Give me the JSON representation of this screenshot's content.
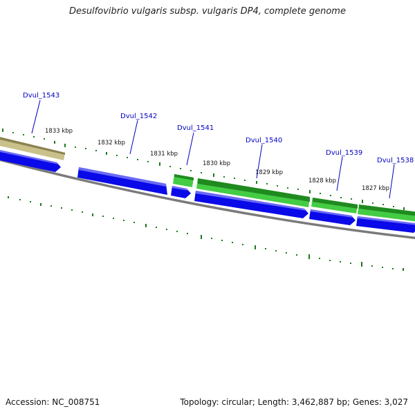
{
  "title": "Desulfovibrio vulgaris subsp. vulgaris DP4, complete genome",
  "accession_label": "Accession: NC_008751",
  "summary_label": "Topology: circular; Length: 3,462,887 bp; Genes: 3,027",
  "colors": {
    "backbone": "#7a7a7a",
    "forward_gene_dark": "#1f8a1f",
    "forward_gene_light": "#44cc44",
    "reverse_gene": "#0a0ae8",
    "other_feature": "#c9c08a",
    "tick": "#1a7a1a",
    "gene_label": "#0000c0"
  },
  "ticks": [
    {
      "label": "1833 kbp"
    },
    {
      "label": "1832 kbp"
    },
    {
      "label": "1831 kbp"
    },
    {
      "label": "1830 kbp"
    },
    {
      "label": "1829 kbp"
    },
    {
      "label": "1828 kbp"
    },
    {
      "label": "1827 kbp"
    }
  ],
  "gene_labels": [
    {
      "name": "Dvul_1543"
    },
    {
      "name": "Dvul_1542"
    },
    {
      "name": "Dvul_1541"
    },
    {
      "name": "Dvul_1540"
    },
    {
      "name": "Dvul_1539"
    },
    {
      "name": "Dvul_1538"
    }
  ]
}
